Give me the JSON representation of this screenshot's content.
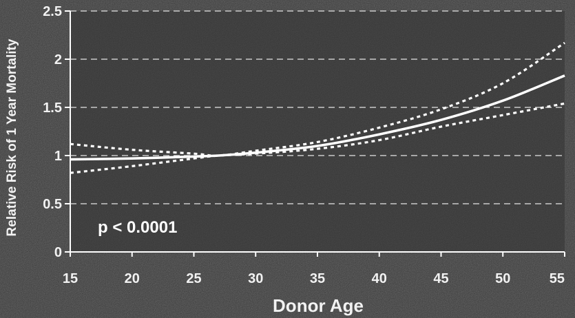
{
  "chart_data": {
    "type": "line",
    "xlabel": "Donor Age",
    "ylabel": "Relative Risk of 1 Year Mortality",
    "xlim": [
      15,
      55
    ],
    "ylim": [
      0,
      2.5
    ],
    "x_ticks": [
      "15",
      "20",
      "25",
      "30",
      "35",
      "40",
      "45",
      "50",
      "55"
    ],
    "y_ticks": [
      "0",
      "0.5",
      "1",
      "1.5",
      "2",
      "2.5"
    ],
    "grid": "horizontal dashed",
    "annotation": "p < 0.0001",
    "series": [
      {
        "style": "solid",
        "x": [
          15,
          20,
          25,
          27,
          30,
          35,
          40,
          45,
          50,
          55
        ],
        "y": [
          0.96,
          0.97,
          0.99,
          1.0,
          1.03,
          1.1,
          1.22,
          1.37,
          1.57,
          1.83
        ]
      },
      {
        "style": "dotted-upper",
        "x": [
          15,
          20,
          25,
          27,
          30,
          35,
          40,
          45,
          50,
          55
        ],
        "y": [
          1.12,
          1.06,
          1.02,
          1.0,
          1.05,
          1.14,
          1.29,
          1.48,
          1.75,
          2.17
        ]
      },
      {
        "style": "dotted-lower",
        "x": [
          15,
          20,
          25,
          27,
          30,
          35,
          40,
          45,
          50,
          55
        ],
        "y": [
          0.82,
          0.89,
          0.97,
          1.0,
          1.02,
          1.07,
          1.16,
          1.3,
          1.42,
          1.54
        ]
      }
    ]
  },
  "colors": {
    "background": "#3a3a3a",
    "plot_area": "#333333",
    "line": "#ffffff",
    "grid": "#e6e6e6",
    "text": "#f2f2f2"
  }
}
